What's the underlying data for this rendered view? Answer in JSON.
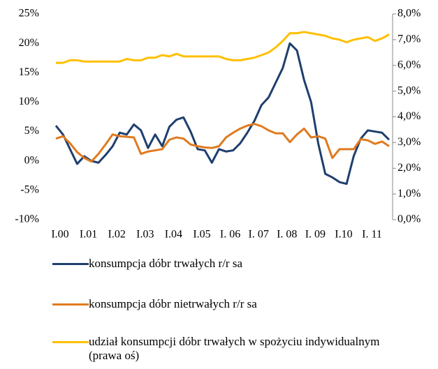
{
  "chart_data": {
    "type": "line",
    "categories": [
      "I.00",
      null,
      null,
      null,
      "I.01",
      null,
      null,
      null,
      "I.02",
      null,
      null,
      null,
      "I.03",
      null,
      null,
      null,
      "I.04",
      null,
      null,
      null,
      "I.05",
      null,
      null,
      null,
      "I. 06",
      null,
      null,
      null,
      "I. 07",
      null,
      null,
      null,
      "I. 08",
      null,
      null,
      null,
      "I. 09",
      null,
      null,
      null,
      "I.10",
      null,
      null,
      null,
      "I. 11",
      null,
      null,
      null
    ],
    "ylim": [
      -10,
      25
    ],
    "yticks": [
      {
        "value": -10,
        "label": "-10%"
      },
      {
        "value": -5,
        "label": "-5%"
      },
      {
        "value": 0,
        "label": "0%"
      },
      {
        "value": 5,
        "label": "5%"
      },
      {
        "value": 10,
        "label": "10%"
      },
      {
        "value": 15,
        "label": "15%"
      },
      {
        "value": 20,
        "label": "20%"
      },
      {
        "value": 25,
        "label": "25%"
      }
    ],
    "y2lim": [
      0,
      8
    ],
    "y2ticks": [
      {
        "value": 0,
        "label": "0,0%"
      },
      {
        "value": 1,
        "label": "1,0%"
      },
      {
        "value": 2,
        "label": "2,0%"
      },
      {
        "value": 3,
        "label": "3,0%"
      },
      {
        "value": 4,
        "label": "4,0%"
      },
      {
        "value": 5,
        "label": "5,0%"
      },
      {
        "value": 6,
        "label": "6,0%"
      },
      {
        "value": 7,
        "label": "7,0%"
      },
      {
        "value": 8,
        "label": "8,0%"
      }
    ],
    "grid": false,
    "legend": "bottom",
    "series": [
      {
        "name": "konsumpcja dóbr trwałych r/r sa",
        "color": "#1f3f6e",
        "values": [
          6,
          4.5,
          2,
          -0.5,
          0.8,
          0,
          -0.3,
          1,
          2.5,
          4.8,
          4.5,
          6.2,
          5.2,
          2.2,
          4.5,
          2.5,
          5.8,
          7,
          7.4,
          5,
          2,
          1.8,
          -0.3,
          2,
          1.6,
          1.8,
          3,
          4.8,
          6.8,
          9.5,
          10.8,
          13.3,
          15.8,
          20,
          18.8,
          13.8,
          10,
          3,
          -2.2,
          -2.8,
          -3.6,
          -3.9,
          0.8,
          3.8,
          5.2,
          5,
          4.8,
          3.6
        ]
      },
      {
        "name": "konsumpcja dóbr nietrwałych r/r sa",
        "color": "#e07a1f",
        "values": [
          3.8,
          4.2,
          3,
          1.5,
          0.5,
          -0.1,
          1.2,
          2.8,
          4.5,
          4.2,
          4.1,
          4,
          1.2,
          1.6,
          1.8,
          2,
          3.6,
          4,
          3.8,
          2.8,
          2.5,
          2.3,
          2.2,
          2.5,
          4,
          4.8,
          5.5,
          6,
          6.3,
          5.9,
          5.2,
          4.7,
          4.7,
          3.2,
          4.5,
          5.5,
          4,
          4.2,
          3.8,
          0.5,
          2,
          2,
          2,
          3.7,
          3.5,
          2.9,
          3.3,
          2.5
        ]
      },
      {
        "name": "udział konsumpcji dóbr trwałych w spożyciu indywidualnym (prawa oś)",
        "color": "#ffc000",
        "axis": "y2",
        "values": [
          6.1,
          6.1,
          6.2,
          6.2,
          6.15,
          6.15,
          6.15,
          6.15,
          6.15,
          6.15,
          6.25,
          6.2,
          6.2,
          6.3,
          6.3,
          6.4,
          6.35,
          6.45,
          6.35,
          6.35,
          6.35,
          6.35,
          6.35,
          6.35,
          6.25,
          6.2,
          6.2,
          6.25,
          6.3,
          6.4,
          6.5,
          6.7,
          6.95,
          7.25,
          7.25,
          7.3,
          7.25,
          7.2,
          7.15,
          7.05,
          7,
          6.9,
          7,
          7.05,
          7.1,
          6.95,
          7.05,
          7.2
        ]
      }
    ]
  }
}
